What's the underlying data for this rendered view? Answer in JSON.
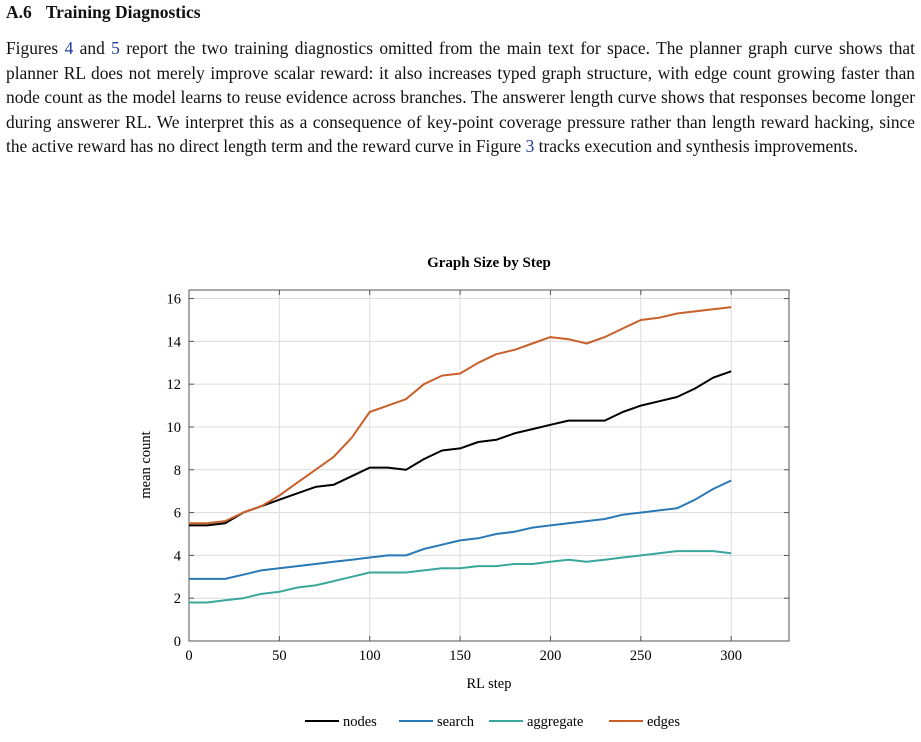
{
  "section": {
    "number": "A.6",
    "title": "Training Diagnostics"
  },
  "paragraph": {
    "t1": "Figures ",
    "ref1": "4",
    "t2": " and ",
    "ref2": "5",
    "t3": " report the two training diagnostics omitted from the main text for space. The planner graph curve shows that planner RL does not merely improve scalar reward: it also increases typed graph structure, with edge count growing faster than node count as the model learns to reuse evidence across branches. The answerer length curve shows that responses become longer during answerer RL. We interpret this as a consequence of key-point coverage pressure rather than length reward hacking, since the active reward has no direct length term and the reward curve in Figure ",
    "ref3": "3",
    "t4": " tracks execution and synthesis improvements."
  },
  "colors": {
    "link": "#1f3c9c",
    "nodes": "#000000",
    "search": "#2a79b5",
    "aggregate": "#3aa79b",
    "edges": "#c9602c"
  },
  "chart_data": {
    "type": "line",
    "title": "Graph Size by Step",
    "xlabel": "RL step",
    "ylabel": "mean count",
    "xlim": [
      0,
      332
    ],
    "ylim": [
      0,
      16.4
    ],
    "xticks": [
      0,
      50,
      100,
      150,
      200,
      250,
      300
    ],
    "yticks": [
      0,
      2,
      4,
      6,
      8,
      10,
      12,
      14,
      16
    ],
    "grid": true,
    "legend": "bottom",
    "series": [
      {
        "name": "nodes",
        "color": "#000000",
        "x": [
          0,
          10,
          20,
          30,
          40,
          50,
          60,
          70,
          80,
          90,
          100,
          110,
          120,
          130,
          140,
          150,
          160,
          170,
          180,
          190,
          200,
          210,
          220,
          230,
          240,
          250,
          260,
          270,
          280,
          290,
          300
        ],
        "y": [
          5.4,
          5.4,
          5.5,
          6.0,
          6.3,
          6.6,
          6.9,
          7.2,
          7.3,
          7.7,
          8.1,
          8.1,
          8.0,
          8.5,
          8.9,
          9.0,
          9.3,
          9.4,
          9.7,
          9.9,
          10.1,
          10.3,
          10.3,
          10.3,
          10.7,
          11.0,
          11.2,
          11.4,
          11.8,
          12.3,
          12.6
        ]
      },
      {
        "name": "search",
        "color": "#2a79b5",
        "x": [
          0,
          10,
          20,
          30,
          40,
          50,
          60,
          70,
          80,
          90,
          100,
          110,
          120,
          130,
          140,
          150,
          160,
          170,
          180,
          190,
          200,
          210,
          220,
          230,
          240,
          250,
          260,
          270,
          280,
          290,
          300
        ],
        "y": [
          2.9,
          2.9,
          2.9,
          3.1,
          3.3,
          3.4,
          3.5,
          3.6,
          3.7,
          3.8,
          3.9,
          4.0,
          4.0,
          4.3,
          4.5,
          4.7,
          4.8,
          5.0,
          5.1,
          5.3,
          5.4,
          5.5,
          5.6,
          5.7,
          5.9,
          6.0,
          6.1,
          6.2,
          6.6,
          7.1,
          7.5
        ]
      },
      {
        "name": "aggregate",
        "color": "#3aa79b",
        "x": [
          0,
          10,
          20,
          30,
          40,
          50,
          60,
          70,
          80,
          90,
          100,
          110,
          120,
          130,
          140,
          150,
          160,
          170,
          180,
          190,
          200,
          210,
          220,
          230,
          240,
          250,
          260,
          270,
          280,
          290,
          300
        ],
        "y": [
          1.8,
          1.8,
          1.9,
          2.0,
          2.2,
          2.3,
          2.5,
          2.6,
          2.8,
          3.0,
          3.2,
          3.2,
          3.2,
          3.3,
          3.4,
          3.4,
          3.5,
          3.5,
          3.6,
          3.6,
          3.7,
          3.8,
          3.7,
          3.8,
          3.9,
          4.0,
          4.1,
          4.2,
          4.2,
          4.2,
          4.1
        ]
      },
      {
        "name": "edges",
        "color": "#c9602c",
        "x": [
          0,
          10,
          20,
          30,
          40,
          50,
          60,
          70,
          80,
          90,
          100,
          110,
          120,
          130,
          140,
          150,
          160,
          170,
          180,
          190,
          200,
          210,
          220,
          230,
          240,
          250,
          260,
          270,
          280,
          290,
          300
        ],
        "y": [
          5.5,
          5.5,
          5.6,
          6.0,
          6.3,
          6.8,
          7.4,
          8.0,
          8.6,
          9.5,
          10.7,
          11.0,
          11.3,
          12.0,
          12.4,
          12.5,
          13.0,
          13.4,
          13.6,
          13.9,
          14.2,
          14.1,
          13.9,
          14.2,
          14.6,
          15.0,
          15.1,
          15.3,
          15.4,
          15.5,
          15.6
        ]
      }
    ]
  }
}
